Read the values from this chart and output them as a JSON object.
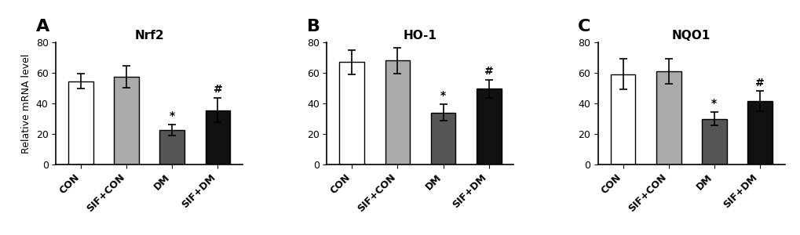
{
  "panels": [
    {
      "label": "A",
      "title": "Nrf2",
      "categories": [
        "CON",
        "SIF+CON",
        "DM",
        "SIF+DM"
      ],
      "values": [
        54.5,
        57.5,
        22.5,
        35.5
      ],
      "errors": [
        5.0,
        7.0,
        3.5,
        8.0
      ],
      "colors": [
        "#ffffff",
        "#aaaaaa",
        "#555555",
        "#111111"
      ],
      "significance": [
        "",
        "",
        "*",
        "#"
      ],
      "ylim": [
        0,
        80
      ],
      "yticks": [
        0,
        20,
        40,
        60,
        80
      ]
    },
    {
      "label": "B",
      "title": "HO-1",
      "categories": [
        "CON",
        "SIF+CON",
        "DM",
        "SIF+DM"
      ],
      "values": [
        67.0,
        68.0,
        34.0,
        49.5
      ],
      "errors": [
        8.0,
        8.5,
        5.5,
        6.0
      ],
      "colors": [
        "#ffffff",
        "#aaaaaa",
        "#555555",
        "#111111"
      ],
      "significance": [
        "",
        "",
        "*",
        "#"
      ],
      "ylim": [
        0,
        80
      ],
      "yticks": [
        0,
        20,
        40,
        60,
        80
      ]
    },
    {
      "label": "C",
      "title": "NQO1",
      "categories": [
        "CON",
        "SIF+CON",
        "DM",
        "SIF+DM"
      ],
      "values": [
        59.0,
        61.0,
        30.0,
        41.5
      ],
      "errors": [
        10.0,
        8.0,
        4.5,
        6.5
      ],
      "colors": [
        "#ffffff",
        "#aaaaaa",
        "#555555",
        "#111111"
      ],
      "significance": [
        "",
        "",
        "*",
        "#"
      ],
      "ylim": [
        0,
        80
      ],
      "yticks": [
        0,
        20,
        40,
        60,
        80
      ]
    }
  ],
  "ylabel": "Relative mRNA level",
  "bar_width": 0.55,
  "edge_color": "#000000",
  "background_color": "#ffffff",
  "panel_label_fontsize": 16,
  "title_fontsize": 11,
  "tick_fontsize": 9,
  "ylabel_fontsize": 9,
  "sig_fontsize": 10
}
